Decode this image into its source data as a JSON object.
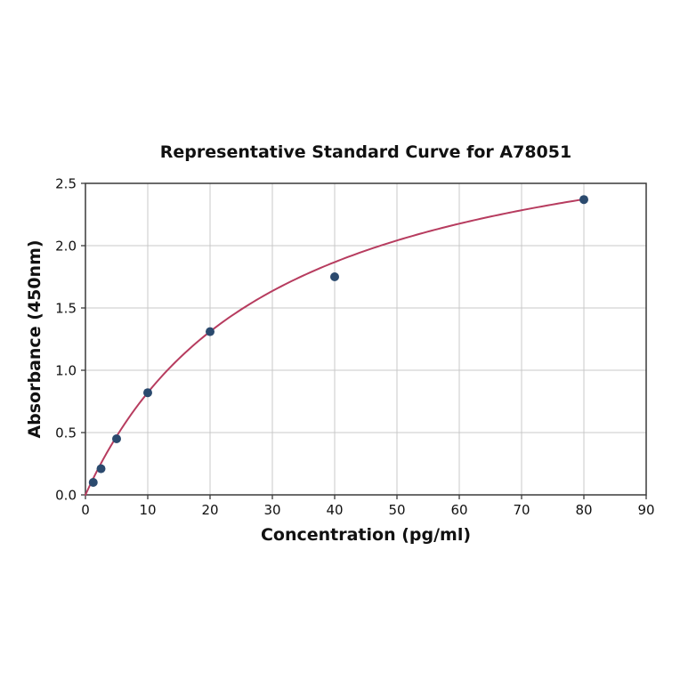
{
  "figure": {
    "background": "#ffffff"
  },
  "chart_data": {
    "type": "scatter",
    "title": "Representative Standard Curve for A78051",
    "xlabel": "Concentration (pg/ml)",
    "ylabel": "Absorbance (450nm)",
    "xlim": [
      0,
      90
    ],
    "ylim": [
      0,
      2.5
    ],
    "x_tick_values": [
      0,
      10,
      20,
      30,
      40,
      50,
      60,
      70,
      80,
      90
    ],
    "x_tick_labels": [
      "0",
      "10",
      "20",
      "30",
      "40",
      "50",
      "60",
      "70",
      "80",
      "90"
    ],
    "y_tick_values": [
      0,
      0.5,
      1.0,
      1.5,
      2.0,
      2.5
    ],
    "y_tick_labels": [
      "0.0",
      "0.5",
      "1.0",
      "1.5",
      "2.0",
      "2.5"
    ],
    "grid": true,
    "legend": "none",
    "points": [
      {
        "x": 1.25,
        "y": 0.1
      },
      {
        "x": 2.5,
        "y": 0.21
      },
      {
        "x": 5,
        "y": 0.45
      },
      {
        "x": 10,
        "y": 0.82
      },
      {
        "x": 20,
        "y": 1.31
      },
      {
        "x": 40,
        "y": 1.75
      },
      {
        "x": 80,
        "y": 2.37
      }
    ],
    "fit_curve": {
      "model": "saturation: y = vmax * x / (k + x)",
      "vmax": 3.25,
      "k": 29.6,
      "x_range": [
        0,
        80
      ]
    },
    "marker_radius": 5,
    "colors": {
      "curve": "#b73c5f",
      "marker": "#2b4a6e",
      "grid": "#c9c9c9",
      "axis": "#3a3a3a",
      "text": "#111111"
    }
  }
}
